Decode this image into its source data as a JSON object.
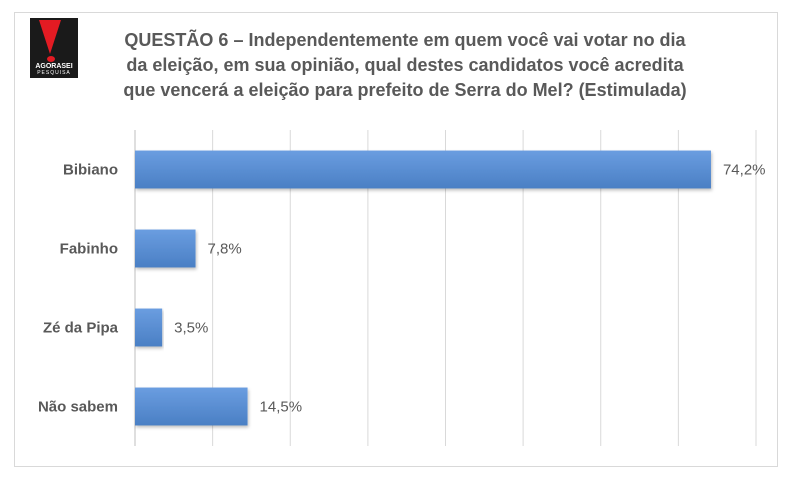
{
  "logo": {
    "text": "AGORASEI",
    "subtext": "PESQUISA"
  },
  "title_lines": [
    "QUESTÃO 6 – Independentemente em quem você vai votar no dia",
    "da eleição, em sua opinião, qual destes candidatos você acredita",
    "que vencerá a eleição para prefeito de Serra do Mel? (Estimulada)"
  ],
  "chart_data": {
    "type": "bar",
    "orientation": "horizontal",
    "title": "QUESTÃO 6 – Independentemente em quem você vai votar no dia da eleição, em sua opinião, qual destes candidatos você acredita que vencerá a eleição para prefeito de Serra do Mel? (Estimulada)",
    "categories": [
      "Bibiano",
      "Fabinho",
      "Zé da Pipa",
      "Não sabem"
    ],
    "values": [
      74.2,
      7.8,
      3.5,
      14.5
    ],
    "value_labels": [
      "74,2%",
      "7,8%",
      "3,5%",
      "14,5%"
    ],
    "xlim": [
      0,
      80
    ],
    "grid": true,
    "bar_color": "#5b8fd1"
  }
}
